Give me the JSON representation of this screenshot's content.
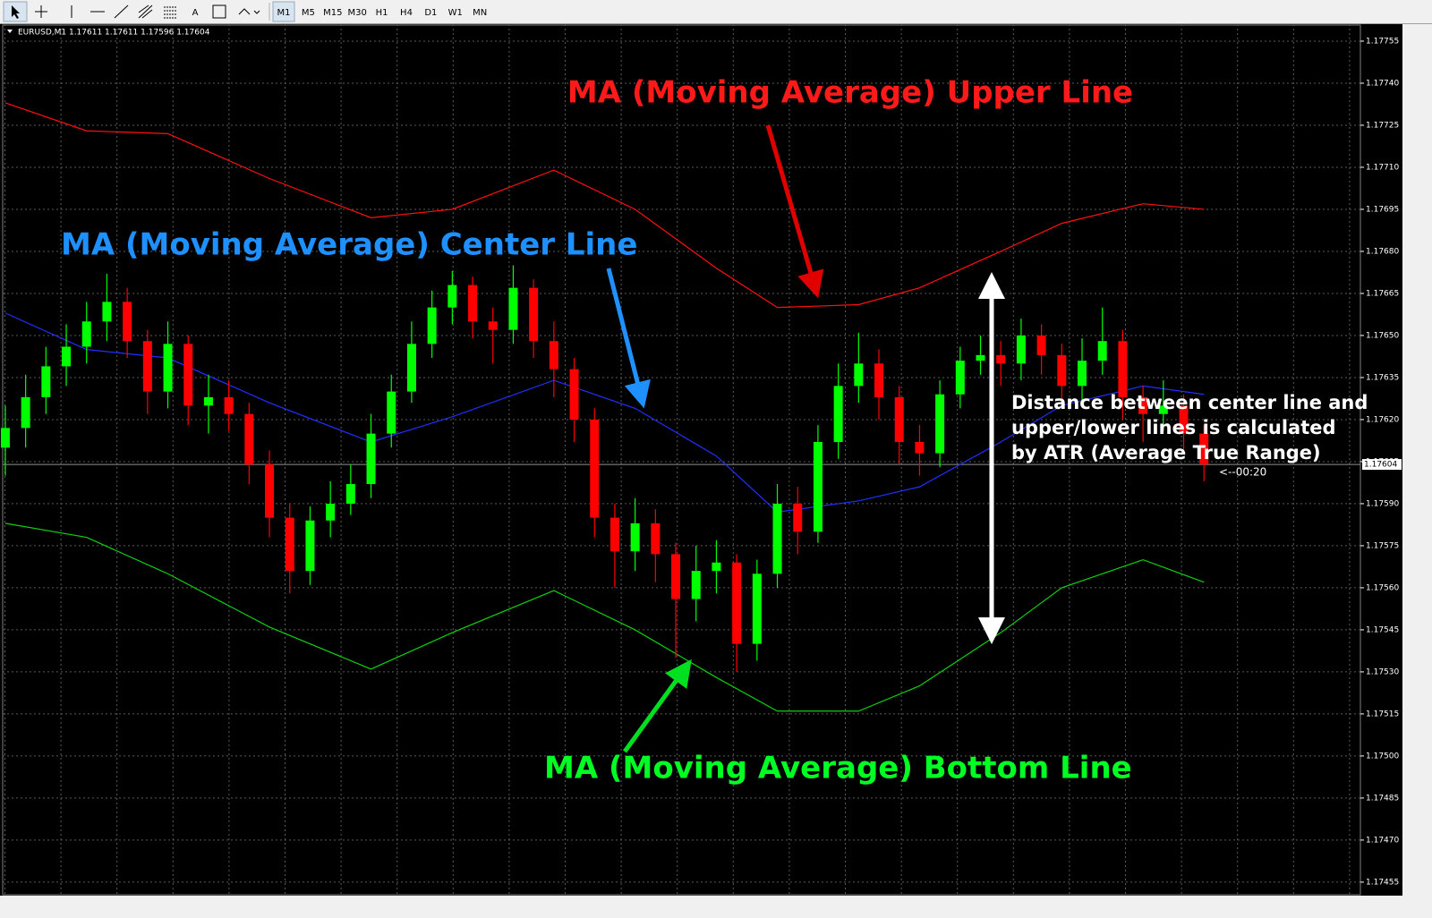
{
  "toolbar": {
    "timeframes": [
      "M1",
      "M5",
      "M15",
      "M30",
      "H1",
      "H4",
      "D1",
      "W1",
      "MN"
    ]
  },
  "chart_data": {
    "type": "candlestick",
    "header": "EURUSD,M1  1.17611 1.17611 1.17596 1.17604",
    "xlim": [
      -0.13,
      66.7
    ],
    "ylim": [
      1.174505,
      1.177601
    ],
    "yticks": [
      1.17755,
      {
        "value": 1.1774,
        "label": "1.17740"
      },
      1.17725,
      {
        "value": 1.1771,
        "label": "1.17710"
      },
      1.17695,
      {
        "value": 1.1768,
        "label": "1.17680"
      },
      1.17665,
      {
        "value": 1.1765,
        "label": "1.17650"
      },
      1.17635,
      {
        "value": 1.1762,
        "label": "1.17620"
      },
      1.17605,
      {
        "value": 1.1759,
        "label": "1.17590"
      },
      1.17575,
      {
        "value": 1.1756,
        "label": "1.17560"
      },
      1.17545,
      {
        "value": 1.1753,
        "label": "1.17530"
      },
      1.17515,
      {
        "value": 1.175,
        "label": "1.17500"
      },
      1.17485,
      {
        "value": 1.1747,
        "label": "1.17470"
      },
      1.17455
    ],
    "grid": true,
    "bull_color": "#00ff00",
    "bear_color": "#ff0000",
    "candles": {
      "open": [
        1.1761,
        1.17617,
        1.17628,
        1.17639,
        1.17646,
        1.17655,
        1.17662,
        1.17648,
        1.1763,
        1.17647,
        1.17625,
        1.17628,
        1.17622,
        1.17604,
        1.17585,
        1.17566,
        1.17584,
        1.1759,
        1.17597,
        1.17615,
        1.1763,
        1.17647,
        1.1766,
        1.17668,
        1.17655,
        1.17652,
        1.17667,
        1.17648,
        1.17638,
        1.1762,
        1.17585,
        1.17573,
        1.17583,
        1.17572,
        1.17556,
        1.17566,
        1.17569,
        1.1754,
        1.17565,
        1.1759,
        1.1758,
        1.17612,
        1.17632,
        1.1764,
        1.17628,
        1.17612,
        1.17608,
        1.17629,
        1.17641,
        1.17643,
        1.1764,
        1.1765,
        1.17643,
        1.17632,
        1.17641,
        1.17648,
        1.17628,
        1.17622,
        1.17625,
        1.17615
      ],
      "high": [
        1.17625,
        1.17636,
        1.17646,
        1.17654,
        1.17662,
        1.17672,
        1.17667,
        1.17652,
        1.17655,
        1.1765,
        1.17636,
        1.17634,
        1.17626,
        1.17609,
        1.1759,
        1.17589,
        1.17598,
        1.17604,
        1.17622,
        1.17636,
        1.17655,
        1.17666,
        1.17673,
        1.17671,
        1.1766,
        1.17675,
        1.1767,
        1.17655,
        1.17642,
        1.17624,
        1.1759,
        1.17592,
        1.17588,
        1.17576,
        1.17575,
        1.17577,
        1.17572,
        1.1757,
        1.17597,
        1.17596,
        1.17618,
        1.1764,
        1.17651,
        1.17645,
        1.17632,
        1.17618,
        1.17634,
        1.17646,
        1.1765,
        1.17648,
        1.17656,
        1.17654,
        1.17647,
        1.17649,
        1.1766,
        1.17652,
        1.17632,
        1.17634,
        1.17629,
        1.17618
      ],
      "low": [
        1.176,
        1.1761,
        1.17622,
        1.17632,
        1.1764,
        1.17648,
        1.17642,
        1.17622,
        1.17624,
        1.17618,
        1.17615,
        1.17616,
        1.17597,
        1.17578,
        1.17558,
        1.17561,
        1.17578,
        1.17586,
        1.17592,
        1.1761,
        1.17626,
        1.17642,
        1.17654,
        1.17649,
        1.1764,
        1.17647,
        1.17642,
        1.17628,
        1.17612,
        1.17578,
        1.1756,
        1.17566,
        1.17562,
        1.17535,
        1.17548,
        1.17558,
        1.1753,
        1.17534,
        1.1756,
        1.17572,
        1.17576,
        1.17606,
        1.17626,
        1.1762,
        1.17604,
        1.176,
        1.17603,
        1.17624,
        1.17636,
        1.17632,
        1.17634,
        1.17636,
        1.17625,
        1.17626,
        1.17636,
        1.1762,
        1.17612,
        1.17616,
        1.17608,
        1.17598
      ],
      "close": [
        1.17617,
        1.17628,
        1.17639,
        1.17646,
        1.17655,
        1.17662,
        1.17648,
        1.1763,
        1.17647,
        1.17625,
        1.17628,
        1.17622,
        1.17604,
        1.17585,
        1.17566,
        1.17584,
        1.1759,
        1.17597,
        1.17615,
        1.1763,
        1.17647,
        1.1766,
        1.17668,
        1.17655,
        1.17652,
        1.17667,
        1.17648,
        1.17638,
        1.1762,
        1.17585,
        1.17573,
        1.17583,
        1.17572,
        1.17556,
        1.17566,
        1.17569,
        1.1754,
        1.17565,
        1.1759,
        1.1758,
        1.17612,
        1.17632,
        1.1764,
        1.17628,
        1.17612,
        1.17608,
        1.17629,
        1.17641,
        1.17643,
        1.1764,
        1.1765,
        1.17643,
        1.17632,
        1.17641,
        1.17648,
        1.17628,
        1.17622,
        1.17625,
        1.17615,
        1.17604
      ]
    },
    "series": [
      {
        "color": "#ff1010",
        "x": [
          0,
          4,
          8,
          13,
          18,
          22,
          27,
          31,
          35,
          38,
          42,
          45,
          49,
          52,
          56,
          59
        ],
        "values": [
          1.17733,
          1.17723,
          1.17722,
          1.17706,
          1.17692,
          1.17695,
          1.17709,
          1.17695,
          1.17674,
          1.1766,
          1.17661,
          1.17667,
          1.1768,
          1.1769,
          1.17697,
          1.17695
        ]
      },
      {
        "color": "#2030ff",
        "x": [
          0,
          4,
          8,
          13,
          18,
          22,
          27,
          31,
          35,
          38,
          42,
          45,
          49,
          52,
          56,
          59
        ],
        "values": [
          1.17658,
          1.17645,
          1.17642,
          1.17626,
          1.17612,
          1.17621,
          1.17634,
          1.17624,
          1.17607,
          1.17587,
          1.17591,
          1.17596,
          1.17612,
          1.17625,
          1.17632,
          1.17629
        ]
      },
      {
        "color": "#10d010",
        "x": [
          0,
          4,
          8,
          13,
          18,
          22,
          27,
          31,
          35,
          38,
          42,
          45,
          49,
          52,
          56,
          59
        ],
        "values": [
          1.17583,
          1.17578,
          1.17565,
          1.17546,
          1.17531,
          1.17544,
          1.17559,
          1.17545,
          1.17528,
          1.17516,
          1.17516,
          1.17525,
          1.17544,
          1.1756,
          1.1757,
          1.17562
        ]
      }
    ],
    "current_price": 1.17604,
    "timer": "<--00:20",
    "annotations": {
      "upper": "MA (Moving Average) Upper Line",
      "center": "MA (Moving Average) Center Line",
      "bottom": "MA (Moving Average) Bottom Line",
      "note": [
        "Distance between center line and",
        "upper/lower lines is calculated",
        "by ATR (Average True Range)"
      ]
    }
  }
}
